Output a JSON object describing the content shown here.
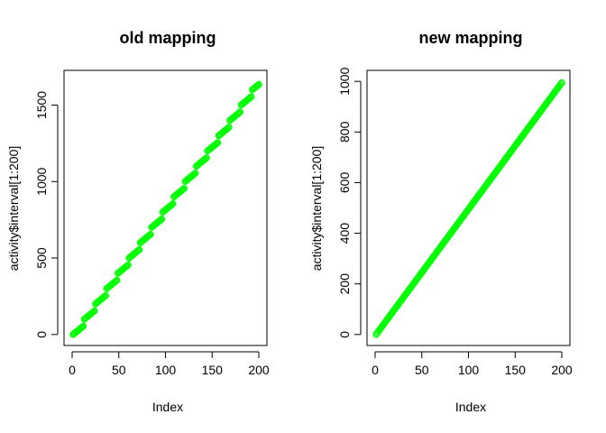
{
  "chart_data": [
    {
      "type": "scatter",
      "title": "old mapping",
      "xlabel": "Index",
      "ylabel": "activity$interval[1:200]",
      "xlim": [
        0,
        200
      ],
      "ylim": [
        0,
        1655
      ],
      "xticks": [
        0,
        50,
        100,
        150,
        200
      ],
      "yticks": [
        0,
        500,
        1000,
        1500
      ],
      "point_color": "#00ff00",
      "series": [
        {
          "x": [
            1,
            2,
            3,
            4,
            5,
            6,
            7,
            8,
            9,
            10,
            11,
            12,
            13,
            14,
            15,
            16,
            17,
            18,
            19,
            20,
            21,
            22,
            23,
            24,
            25,
            26,
            27,
            28,
            29,
            30,
            31,
            32,
            33,
            34,
            35,
            36,
            37,
            38,
            39,
            40,
            41,
            42,
            43,
            44,
            45,
            46,
            47,
            48,
            49,
            50,
            51,
            52,
            53,
            54,
            55,
            56,
            57,
            58,
            59,
            60,
            61,
            62,
            63,
            64,
            65,
            66,
            67,
            68,
            69,
            70,
            71,
            72,
            73,
            74,
            75,
            76,
            77,
            78,
            79,
            80,
            81,
            82,
            83,
            84,
            85,
            86,
            87,
            88,
            89,
            90,
            91,
            92,
            93,
            94,
            95,
            96,
            97,
            98,
            99,
            100,
            101,
            102,
            103,
            104,
            105,
            106,
            107,
            108,
            109,
            110,
            111,
            112,
            113,
            114,
            115,
            116,
            117,
            118,
            119,
            120,
            121,
            122,
            123,
            124,
            125,
            126,
            127,
            128,
            129,
            130,
            131,
            132,
            133,
            134,
            135,
            136,
            137,
            138,
            139,
            140,
            141,
            142,
            143,
            144,
            145,
            146,
            147,
            148,
            149,
            150,
            151,
            152,
            153,
            154,
            155,
            156,
            157,
            158,
            159,
            160,
            161,
            162,
            163,
            164,
            165,
            166,
            167,
            168,
            169,
            170,
            171,
            172,
            173,
            174,
            175,
            176,
            177,
            178,
            179,
            180,
            181,
            182,
            183,
            184,
            185,
            186,
            187,
            188,
            189,
            190,
            191,
            192,
            193,
            194,
            195,
            196,
            197,
            198,
            199,
            200
          ],
          "y": [
            0,
            5,
            10,
            15,
            20,
            25,
            30,
            35,
            40,
            45,
            50,
            55,
            100,
            105,
            110,
            115,
            120,
            125,
            130,
            135,
            140,
            145,
            150,
            155,
            200,
            205,
            210,
            215,
            220,
            225,
            230,
            235,
            240,
            245,
            250,
            255,
            300,
            305,
            310,
            315,
            320,
            325,
            330,
            335,
            340,
            345,
            350,
            355,
            400,
            405,
            410,
            415,
            420,
            425,
            430,
            435,
            440,
            445,
            450,
            455,
            500,
            505,
            510,
            515,
            520,
            525,
            530,
            535,
            540,
            545,
            550,
            555,
            600,
            605,
            610,
            615,
            620,
            625,
            630,
            635,
            640,
            645,
            650,
            655,
            700,
            705,
            710,
            715,
            720,
            725,
            730,
            735,
            740,
            745,
            750,
            755,
            800,
            805,
            810,
            815,
            820,
            825,
            830,
            835,
            840,
            845,
            850,
            855,
            900,
            905,
            910,
            915,
            920,
            925,
            930,
            935,
            940,
            945,
            950,
            955,
            1000,
            1005,
            1010,
            1015,
            1020,
            1025,
            1030,
            1035,
            1040,
            1045,
            1050,
            1055,
            1100,
            1105,
            1110,
            1115,
            1120,
            1125,
            1130,
            1135,
            1140,
            1145,
            1150,
            1155,
            1200,
            1205,
            1210,
            1215,
            1220,
            1225,
            1230,
            1235,
            1240,
            1245,
            1250,
            1255,
            1300,
            1305,
            1310,
            1315,
            1320,
            1325,
            1330,
            1335,
            1340,
            1345,
            1350,
            1355,
            1400,
            1405,
            1410,
            1415,
            1420,
            1425,
            1430,
            1435,
            1440,
            1445,
            1450,
            1455,
            1500,
            1505,
            1510,
            1515,
            1520,
            1525,
            1530,
            1535,
            1540,
            1545,
            1550,
            1555,
            1600,
            1605,
            1610,
            1615,
            1620,
            1625,
            1630,
            1635
          ]
        }
      ]
    },
    {
      "type": "scatter",
      "title": "new mapping",
      "xlabel": "Index",
      "ylabel": "activity$interval[1:200]",
      "xlim": [
        0,
        200
      ],
      "ylim": [
        0,
        1000
      ],
      "xticks": [
        0,
        50,
        100,
        150,
        200
      ],
      "yticks": [
        0,
        200,
        400,
        600,
        800,
        1000
      ],
      "point_color": "#00ff00",
      "series": [
        {
          "x": [
            1,
            2,
            3,
            4,
            5,
            6,
            7,
            8,
            9,
            10,
            11,
            12,
            13,
            14,
            15,
            16,
            17,
            18,
            19,
            20,
            21,
            22,
            23,
            24,
            25,
            26,
            27,
            28,
            29,
            30,
            31,
            32,
            33,
            34,
            35,
            36,
            37,
            38,
            39,
            40,
            41,
            42,
            43,
            44,
            45,
            46,
            47,
            48,
            49,
            50,
            51,
            52,
            53,
            54,
            55,
            56,
            57,
            58,
            59,
            60,
            61,
            62,
            63,
            64,
            65,
            66,
            67,
            68,
            69,
            70,
            71,
            72,
            73,
            74,
            75,
            76,
            77,
            78,
            79,
            80,
            81,
            82,
            83,
            84,
            85,
            86,
            87,
            88,
            89,
            90,
            91,
            92,
            93,
            94,
            95,
            96,
            97,
            98,
            99,
            100,
            101,
            102,
            103,
            104,
            105,
            106,
            107,
            108,
            109,
            110,
            111,
            112,
            113,
            114,
            115,
            116,
            117,
            118,
            119,
            120,
            121,
            122,
            123,
            124,
            125,
            126,
            127,
            128,
            129,
            130,
            131,
            132,
            133,
            134,
            135,
            136,
            137,
            138,
            139,
            140,
            141,
            142,
            143,
            144,
            145,
            146,
            147,
            148,
            149,
            150,
            151,
            152,
            153,
            154,
            155,
            156,
            157,
            158,
            159,
            160,
            161,
            162,
            163,
            164,
            165,
            166,
            167,
            168,
            169,
            170,
            171,
            172,
            173,
            174,
            175,
            176,
            177,
            178,
            179,
            180,
            181,
            182,
            183,
            184,
            185,
            186,
            187,
            188,
            189,
            190,
            191,
            192,
            193,
            194,
            195,
            196,
            197,
            198,
            199,
            200
          ],
          "y": [
            0,
            5,
            10,
            15,
            20,
            25,
            30,
            35,
            40,
            45,
            50,
            55,
            60,
            65,
            70,
            75,
            80,
            85,
            90,
            95,
            100,
            105,
            110,
            115,
            120,
            125,
            130,
            135,
            140,
            145,
            150,
            155,
            160,
            165,
            170,
            175,
            180,
            185,
            190,
            195,
            200,
            205,
            210,
            215,
            220,
            225,
            230,
            235,
            240,
            245,
            250,
            255,
            260,
            265,
            270,
            275,
            280,
            285,
            290,
            295,
            300,
            305,
            310,
            315,
            320,
            325,
            330,
            335,
            340,
            345,
            350,
            355,
            360,
            365,
            370,
            375,
            380,
            385,
            390,
            395,
            400,
            405,
            410,
            415,
            420,
            425,
            430,
            435,
            440,
            445,
            450,
            455,
            460,
            465,
            470,
            475,
            480,
            485,
            490,
            495,
            500,
            505,
            510,
            515,
            520,
            525,
            530,
            535,
            540,
            545,
            550,
            555,
            560,
            565,
            570,
            575,
            580,
            585,
            590,
            595,
            600,
            605,
            610,
            615,
            620,
            625,
            630,
            635,
            640,
            645,
            650,
            655,
            660,
            665,
            670,
            675,
            680,
            685,
            690,
            695,
            700,
            705,
            710,
            715,
            720,
            725,
            730,
            735,
            740,
            745,
            750,
            755,
            760,
            765,
            770,
            775,
            780,
            785,
            790,
            795,
            800,
            805,
            810,
            815,
            820,
            825,
            830,
            835,
            840,
            845,
            850,
            855,
            860,
            865,
            870,
            875,
            880,
            885,
            890,
            895,
            900,
            905,
            910,
            915,
            920,
            925,
            930,
            935,
            940,
            945,
            950,
            955,
            960,
            965,
            970,
            975,
            980,
            985,
            990,
            995
          ]
        }
      ]
    }
  ]
}
